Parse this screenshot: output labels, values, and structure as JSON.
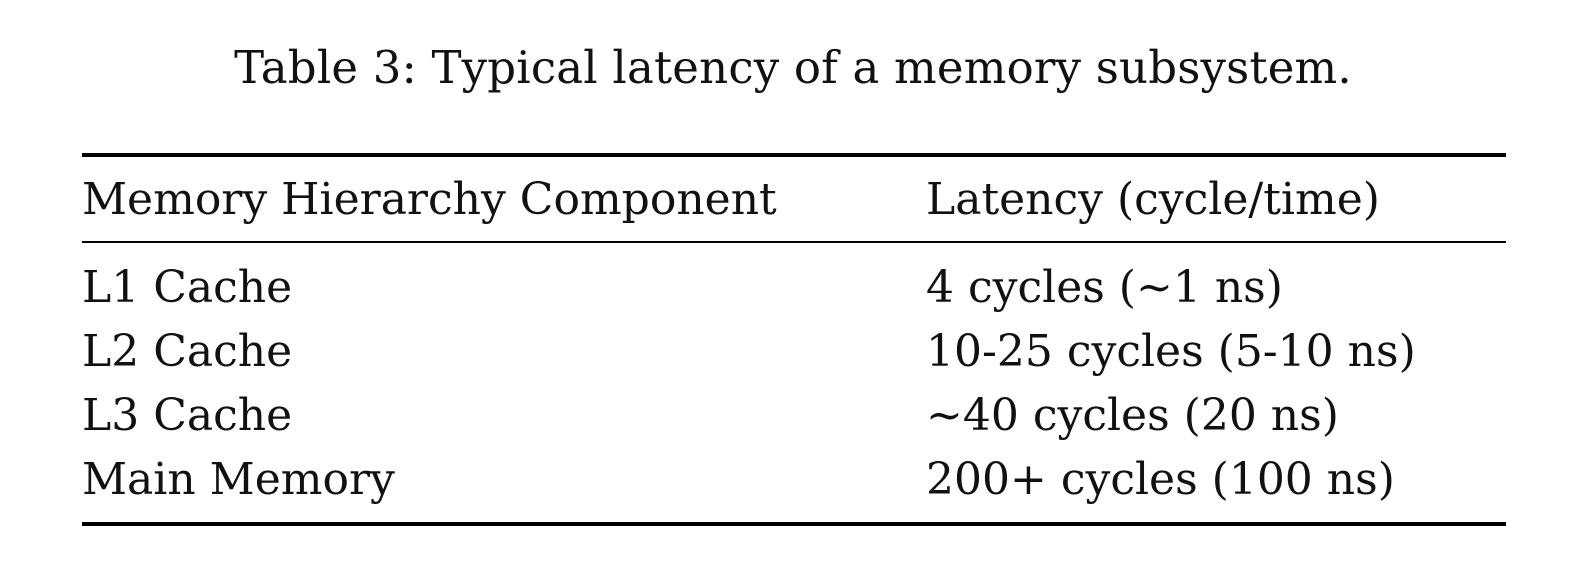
{
  "caption": "Table 3: Typical latency of a memory subsystem.",
  "table": {
    "headers": [
      "Memory Hierarchy Component",
      "Latency (cycle/time)"
    ],
    "rows": [
      [
        "L1 Cache",
        "4 cycles (~1 ns)"
      ],
      [
        "L2 Cache",
        "10-25 cycles (5-10 ns)"
      ],
      [
        "L3 Cache",
        "~40 cycles (20 ns)"
      ],
      [
        "Main Memory",
        "200+ cycles (100 ns)"
      ]
    ]
  }
}
